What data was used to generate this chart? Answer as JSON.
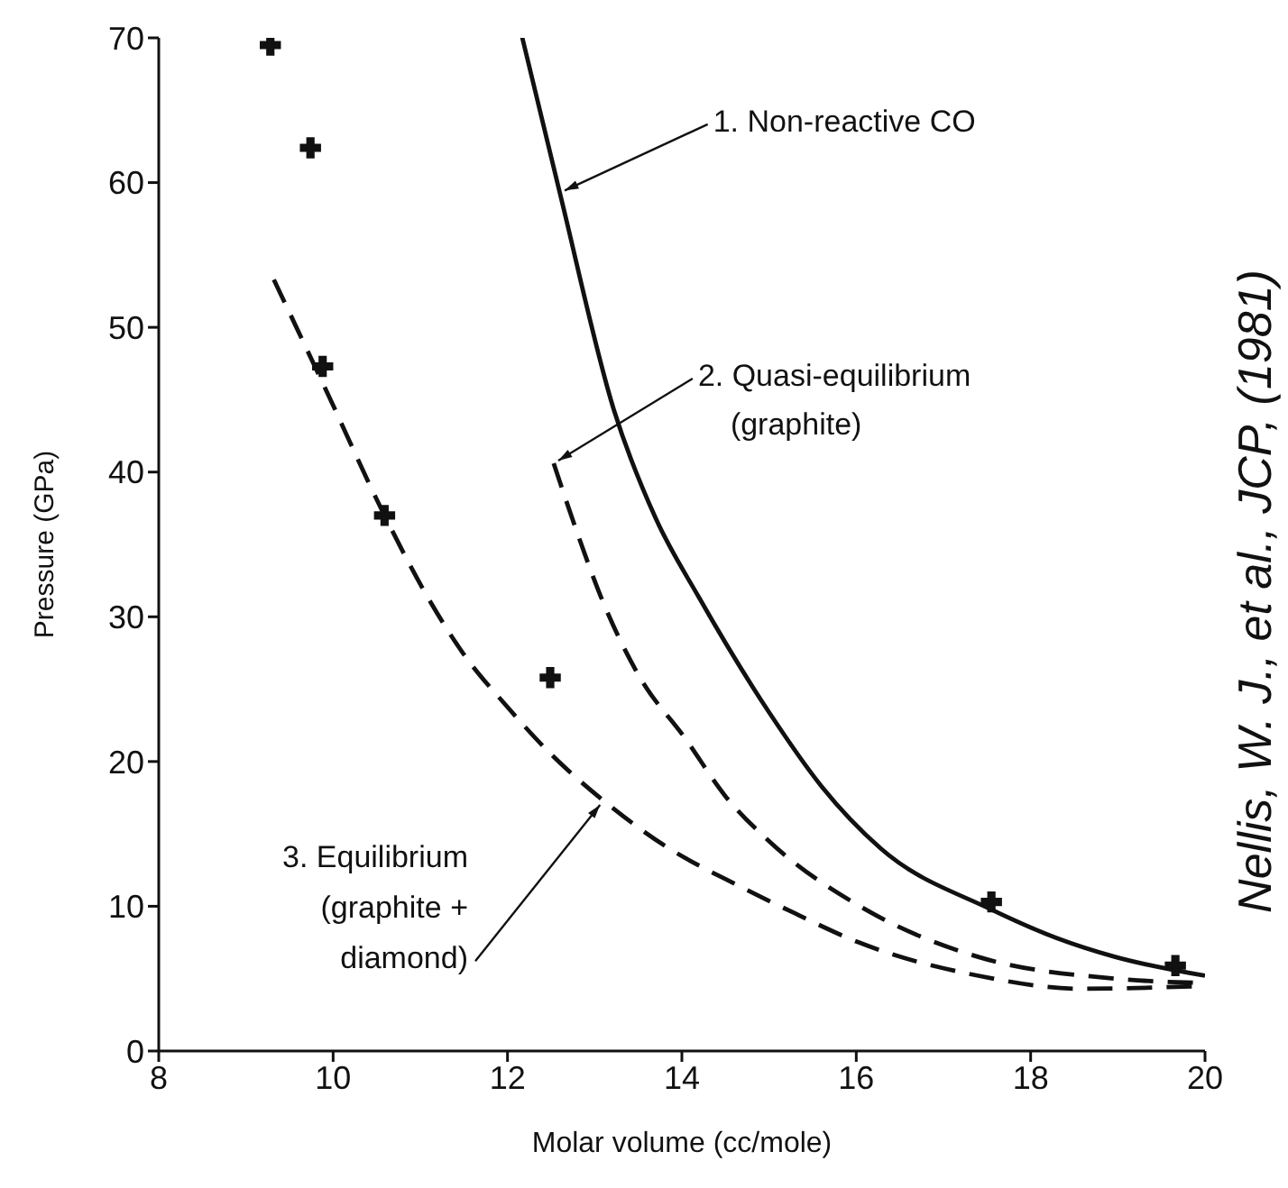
{
  "chart_data": {
    "type": "line",
    "xlabel": "Molar volume (cc/mole)",
    "ylabel": "Pressure (GPa)",
    "xlim": [
      8,
      20
    ],
    "xticks": [
      8,
      10,
      12,
      14,
      16,
      18,
      20
    ],
    "ylim": [
      0,
      70
    ],
    "yticks": [
      0,
      10,
      20,
      30,
      40,
      50,
      60,
      70
    ],
    "grid": false,
    "series": [
      {
        "type": "scatter",
        "marker": "cross",
        "color": "#111111",
        "x": [
          9.28,
          9.74,
          9.88,
          10.59,
          12.49,
          17.55,
          19.66
        ],
        "values": [
          69.5,
          62.4,
          47.3,
          37.0,
          25.8,
          10.3,
          5.9
        ]
      },
      {
        "line_style": "solid",
        "color": "#111111",
        "x": [
          12.17,
          12.6,
          13.22,
          13.7,
          14.19,
          15.0,
          15.6,
          16.28,
          17.54,
          18.3,
          18.97,
          20
        ],
        "values": [
          70,
          59.3,
          44.3,
          36.8,
          31.4,
          23.4,
          18.3,
          14.0,
          9.8,
          7.8,
          6.5,
          5.2
        ]
      },
      {
        "line_style": "dashed",
        "color": "#111111",
        "x": [
          12.53,
          12.8,
          13.07,
          13.5,
          14.05,
          14.5,
          15.0,
          16.1,
          17.4,
          18.97,
          20
        ],
        "values": [
          40.6,
          35.8,
          31.4,
          26.0,
          21.5,
          17.6,
          14.5,
          9.8,
          6.5,
          5.0,
          4.7
        ]
      },
      {
        "line_style": "dashed",
        "color": "#111111",
        "x": [
          9.32,
          9.9,
          10.59,
          11.08,
          11.5,
          11.98,
          12.5,
          13.1,
          13.8,
          14.69,
          15.3,
          16.03,
          17.4,
          18.58,
          20
        ],
        "values": [
          53.3,
          45.9,
          37.0,
          31.4,
          27.4,
          23.9,
          20.5,
          17.3,
          14.2,
          11.3,
          9.5,
          7.5,
          5.2,
          4.3,
          4.5
        ]
      }
    ],
    "annotations": [
      {
        "text": "1. Non-reactive CO",
        "x": 12.6,
        "y": 59.3
      },
      {
        "text": "2. Quasi-equilibrium\n(graphite)",
        "x": 12.53,
        "y": 40.6
      },
      {
        "text": "3. Equilibrium\n(graphite +\ndiamond)",
        "x": 13.1,
        "y": 17.3
      },
      "Nellis, W. J., et al., JCP, (1981)"
    ]
  }
}
